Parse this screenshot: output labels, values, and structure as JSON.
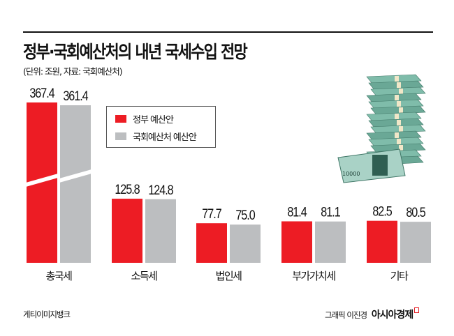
{
  "header": {
    "title": "정부·국회예산처의 내년 국세수입 전망",
    "subtitle": "(단위: 조원, 자료: 국회예산처)"
  },
  "legend": {
    "items": [
      {
        "label": "정부 예산안",
        "color": "#ed1c24"
      },
      {
        "label": "국회예산처 예산안",
        "color": "#bcbec0"
      }
    ]
  },
  "footer": {
    "source": "게티이미지뱅크",
    "credit": "그래픽 이진경",
    "brand": "아시아경제"
  },
  "illustration": {
    "banknote_label": "10000"
  },
  "chart_data": {
    "type": "bar",
    "categories": [
      "총국세",
      "소득세",
      "법인세",
      "부가가치세",
      "기타"
    ],
    "series": [
      {
        "name": "정부 예산안",
        "values": [
          367.4,
          125.8,
          77.7,
          81.4,
          82.5
        ],
        "labels": [
          "367.4",
          "125.8",
          "77.7",
          "81.4",
          "82.5"
        ],
        "color": "#ed1c24"
      },
      {
        "name": "국회예산처 예산안",
        "values": [
          361.4,
          124.8,
          75.0,
          81.1,
          80.5
        ],
        "labels": [
          "361.4",
          "124.8",
          "75.0",
          "81.1",
          "80.5"
        ],
        "color": "#bcbec0"
      }
    ],
    "unit": "조원",
    "axis_break": "first category bars truncated with diagonal break",
    "grid": false,
    "legend_position": "top-left"
  }
}
